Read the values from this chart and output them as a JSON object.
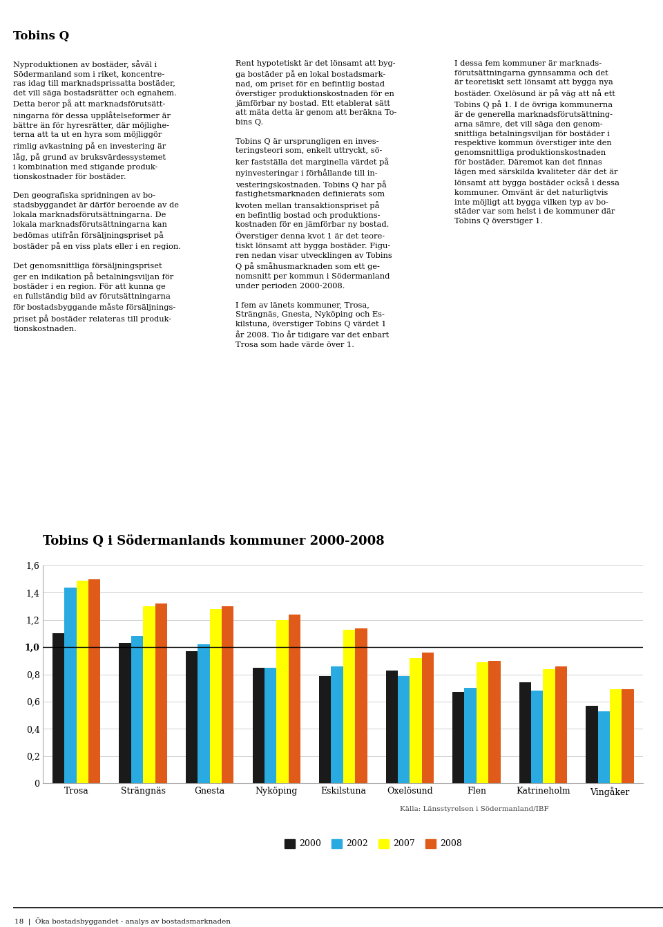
{
  "title": "Tobins Q i Södermanlands kommuner 2000-2008",
  "categories": [
    "Trosa",
    "Strängnäs",
    "Gnesta",
    "Nyköping",
    "Eskilstuna",
    "Oxelösund",
    "Flen",
    "Katrineholm",
    "Vingåker"
  ],
  "years": [
    "2000",
    "2002",
    "2007",
    "2008"
  ],
  "colors": [
    "#1a1a1a",
    "#29abe2",
    "#ffff00",
    "#e05a1a"
  ],
  "values": {
    "2000": [
      1.1,
      1.03,
      0.97,
      0.85,
      0.79,
      0.83,
      0.67,
      0.74,
      0.57
    ],
    "2002": [
      1.44,
      1.08,
      1.02,
      0.85,
      0.86,
      0.79,
      0.7,
      0.68,
      0.53
    ],
    "2007": [
      1.49,
      1.3,
      1.28,
      1.2,
      1.13,
      0.92,
      0.89,
      0.84,
      0.69
    ],
    "2008": [
      1.5,
      1.32,
      1.3,
      1.24,
      1.14,
      0.96,
      0.9,
      0.86,
      0.69
    ]
  },
  "ylim": [
    0,
    1.6
  ],
  "yticks": [
    0,
    0.2,
    0.4,
    0.6,
    0.8,
    1.0,
    1.2,
    1.4,
    1.6
  ],
  "ytick_labels": [
    "0",
    "0,2",
    "0,4",
    "0,6",
    "0,8",
    "1,0",
    "1,2",
    "1,4",
    "1,6"
  ],
  "hline_y": 1.0,
  "source_text": "Källa: Länsstyrelsen i Södermanland/IBF",
  "footer_text": "18  |  Öka bostadsbyggandet - analys av bostadsmarknaden",
  "background_color": "#ffffff",
  "plot_bg_color": "#ffffff",
  "bar_width": 0.18,
  "chart_title_fontsize": 13,
  "axis_fontsize": 9,
  "legend_fontsize": 9,
  "body_fontsize": 8.2,
  "col_title_fontsize": 12
}
